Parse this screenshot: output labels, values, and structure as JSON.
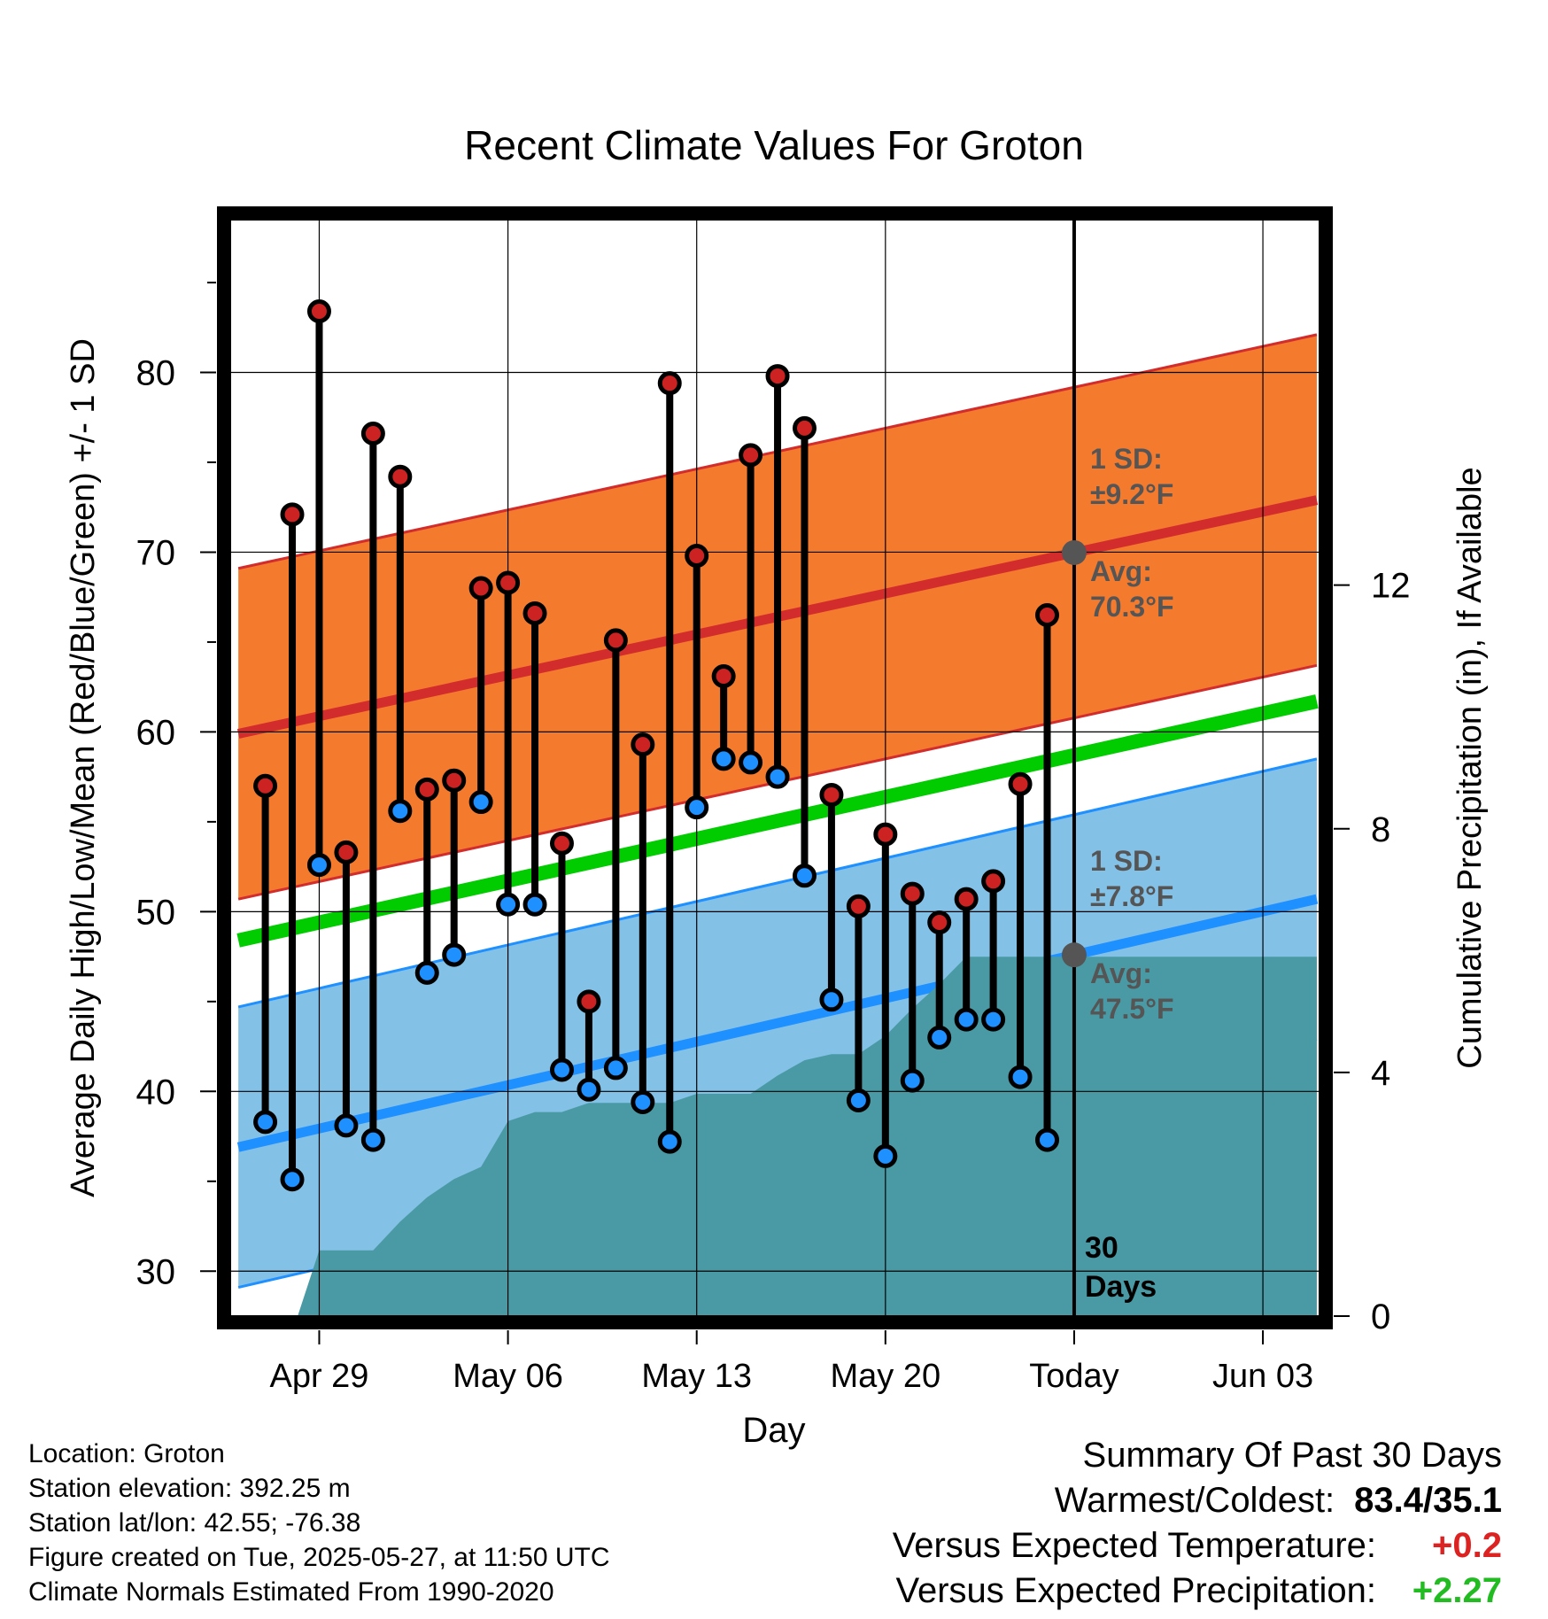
{
  "colors": {
    "high_band": "#f47a2e",
    "high_line": "#d22c2c",
    "low_band": "#84c1e7",
    "low_line": "#1e90ff",
    "mean_line": "#00cc00",
    "precip": "#4a9aa5",
    "high_dot": "#cc2222",
    "low_dot": "#1e90ff",
    "today_dot": "#555555",
    "annotation": "#555555",
    "positive_temp": "#dd2222",
    "positive_precip": "#22bb22"
  },
  "chart_data": {
    "type": "line",
    "title": "Recent Climate Values For Groton",
    "xlabel": "Day",
    "ylabel": "Average Daily High/Low/Mean (Red/Blue/Green) +/- 1 SD",
    "y2label": "Cumulative Precipitation (in), If Available",
    "xlim": [
      -3.3,
      37.1
    ],
    "ylim": [
      27.5,
      88.5
    ],
    "y2lim": [
      0,
      18
    ],
    "grid": true,
    "x_ticks": [
      {
        "x": 0,
        "label": "Apr 29"
      },
      {
        "x": 7,
        "label": "May 06"
      },
      {
        "x": 14,
        "label": "May 13"
      },
      {
        "x": 21,
        "label": "May 20"
      },
      {
        "x": 28,
        "label": "Today"
      },
      {
        "x": 35,
        "label": "Jun 03"
      }
    ],
    "y_ticks": [
      30,
      40,
      50,
      60,
      70,
      80
    ],
    "y2_ticks": [
      0,
      4,
      8,
      12
    ],
    "daily_x": [
      -2,
      -1,
      0,
      1,
      2,
      3,
      4,
      5,
      6,
      7,
      8,
      9,
      10,
      11,
      12,
      13,
      14,
      15,
      16,
      17,
      18,
      19,
      20,
      21,
      22,
      23,
      24,
      25,
      26,
      27
    ],
    "daily_highs": [
      57.0,
      72.1,
      83.4,
      53.3,
      76.6,
      74.2,
      56.8,
      57.3,
      68.0,
      68.3,
      66.6,
      53.8,
      45.0,
      65.1,
      59.3,
      79.4,
      69.8,
      63.1,
      75.4,
      79.8,
      76.9,
      56.5,
      50.3,
      54.3,
      51.0,
      49.4,
      50.7,
      51.7,
      57.1,
      66.5
    ],
    "daily_lows": [
      38.3,
      35.1,
      52.6,
      38.1,
      37.3,
      55.6,
      46.6,
      47.6,
      56.1,
      50.4,
      50.4,
      41.2,
      40.1,
      41.3,
      39.4,
      37.2,
      55.8,
      58.5,
      58.3,
      57.5,
      52.0,
      45.1,
      39.5,
      36.4,
      40.6,
      43.0,
      44.0,
      44.0,
      40.8,
      37.3
    ],
    "normals_x": [
      -3,
      37
    ],
    "normal_high": [
      59.9,
      72.9
    ],
    "normal_mean": [
      48.4,
      61.7
    ],
    "normal_low": [
      36.9,
      50.7
    ],
    "sd_high": 9.2,
    "sd_low": 7.8,
    "today_x": 28,
    "precip_x": [
      -0.8,
      0,
      1,
      2,
      3,
      4,
      5,
      6,
      7,
      8,
      9,
      10,
      11,
      12,
      13,
      14,
      15,
      16,
      17,
      18,
      19,
      20,
      21,
      22,
      23,
      24,
      25,
      26,
      27,
      28,
      29,
      30,
      31,
      32,
      33,
      34,
      35,
      36,
      37
    ],
    "precip_cum": [
      0.0,
      1.08,
      1.08,
      1.08,
      1.55,
      1.95,
      2.25,
      2.45,
      3.2,
      3.35,
      3.35,
      3.5,
      3.5,
      3.5,
      3.5,
      3.65,
      3.65,
      3.65,
      3.95,
      4.2,
      4.3,
      4.3,
      4.6,
      5.05,
      5.45,
      5.9,
      5.9,
      5.9,
      5.9,
      5.9,
      5.9,
      5.9,
      5.9,
      5.9,
      5.9,
      5.9,
      5.9,
      5.9,
      5.9
    ]
  },
  "annotations": {
    "high_sd_label": "1 SD:",
    "high_sd_value": "±9.2°F",
    "high_avg_label": "Avg:",
    "high_avg_value": "70.3°F",
    "low_sd_label": "1 SD:",
    "low_sd_value": "±7.8°F",
    "low_avg_label": "Avg:",
    "low_avg_value": "47.5°F",
    "days_count": "30",
    "days_label": "Days"
  },
  "info": {
    "location": "Location: Groton",
    "elevation": "Station elevation: 392.25 m",
    "latlon": "Station lat/lon: 42.55; -76.38",
    "created": "Figure created on Tue, 2025-05-27, at 11:50 UTC",
    "normals": "Climate Normals Estimated From 1990-2020"
  },
  "summary": {
    "title": "Summary Of Past 30 Days",
    "warm_cold_label": "Warmest/Coldest:",
    "warm_cold_value": "83.4/35.1",
    "temp_label": "Versus Expected Temperature:",
    "temp_value": "+0.2",
    "precip_label": "Versus Expected Precipitation:",
    "precip_value": "+2.27"
  }
}
